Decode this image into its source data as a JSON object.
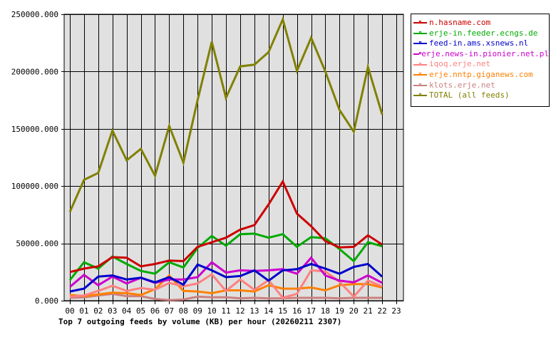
{
  "chart_data": {
    "type": "line",
    "title": "Top 7 outgoing feeds by volume (KB) per hour (20260211 2307)",
    "xlabel": "",
    "ylabel": "",
    "ylim": [
      0,
      250000
    ],
    "grid": true,
    "legend_position": "right",
    "x": [
      "00",
      "01",
      "02",
      "03",
      "04",
      "05",
      "06",
      "07",
      "08",
      "09",
      "10",
      "11",
      "12",
      "13",
      "14",
      "15",
      "16",
      "17",
      "18",
      "19",
      "20",
      "21",
      "22",
      "23"
    ],
    "y_ticks": [
      "0.000",
      "50000.000",
      "100000.000",
      "150000.000",
      "200000.000",
      "250000.000"
    ],
    "series": [
      {
        "name": "n.hasname.com",
        "color": "#cc0000",
        "values": [
          25000,
          28000,
          30000,
          38000,
          37500,
          30000,
          32000,
          35000,
          34500,
          47000,
          51000,
          55000,
          62000,
          66000,
          84000,
          104000,
          76000,
          65000,
          52000,
          46500,
          47000,
          57000,
          49000
        ]
      },
      {
        "name": "erje-in.feeder.ecngs.de",
        "color": "#00aa00",
        "values": [
          18000,
          33500,
          28000,
          38500,
          32000,
          26000,
          23500,
          33500,
          29000,
          46000,
          56500,
          48000,
          58000,
          58500,
          55000,
          58000,
          47000,
          55500,
          54500,
          45000,
          34500,
          51000,
          47500
        ]
      },
      {
        "name": "feed-in.ams.xsnews.nl",
        "color": "#0000cc",
        "values": [
          8000,
          10500,
          21000,
          22000,
          18500,
          20000,
          16000,
          20500,
          14000,
          31500,
          26500,
          20500,
          21500,
          26500,
          17500,
          26500,
          27500,
          32000,
          28000,
          23500,
          29500,
          32000,
          21000
        ]
      },
      {
        "name": "erje.news-in.pionier.net.pl",
        "color": "#cc00cc",
        "values": [
          12000,
          22500,
          13500,
          21000,
          15000,
          20000,
          15500,
          18500,
          18500,
          20500,
          33500,
          24500,
          26500,
          26000,
          26500,
          27500,
          23500,
          37500,
          22000,
          17500,
          16000,
          22000,
          15500
        ]
      },
      {
        "name": "iqoq.erje.net",
        "color": "#ff8080",
        "values": [
          3500,
          4500,
          8500,
          13000,
          8500,
          11000,
          9500,
          15500,
          12500,
          15000,
          23000,
          8500,
          18500,
          9500,
          18000,
          2500,
          6000,
          26500,
          25500,
          16500,
          3500,
          17500,
          12500
        ]
      },
      {
        "name": "erje.nntp.giganews.com",
        "color": "#ff8000",
        "values": [
          5000,
          4000,
          5500,
          7000,
          6500,
          5000,
          10000,
          22000,
          8500,
          8000,
          6500,
          9000,
          9000,
          8000,
          13500,
          10500,
          10500,
          11500,
          9000,
          13500,
          14500,
          14500,
          11500
        ]
      },
      {
        "name": "klots.erje.net",
        "color": "#cc8080",
        "values": [
          2500,
          3000,
          4500,
          6000,
          4000,
          4000,
          1500,
          500,
          1000,
          3500,
          3000,
          3000,
          2000,
          2500,
          2000,
          2000,
          2500,
          2500,
          2500,
          2000,
          2500,
          2500,
          2500
        ]
      },
      {
        "name": "TOTAL (all feeds)",
        "color": "#808000",
        "values": [
          77500,
          105500,
          111500,
          148500,
          122500,
          132500,
          109000,
          152500,
          120500,
          175000,
          226000,
          177000,
          204500,
          206000,
          217000,
          245500,
          200500,
          229500,
          200000,
          166500,
          147500,
          204000,
          162500
        ]
      }
    ]
  },
  "caption": "Top 7 outgoing feeds by volume (KB) per hour (20260211 2307)",
  "legend": {
    "items": [
      {
        "label": "n.hasname.com",
        "color": "#cc0000"
      },
      {
        "label": "erje-in.feeder.ecngs.de",
        "color": "#00aa00"
      },
      {
        "label": "feed-in.ams.xsnews.nl",
        "color": "#0000cc"
      },
      {
        "label": "erje.news-in.pionier.net.pl",
        "color": "#cc00cc"
      },
      {
        "label": "iqoq.erje.net",
        "color": "#ff8080"
      },
      {
        "label": "erje.nntp.giganews.com",
        "color": "#ff8000"
      },
      {
        "label": "klots.erje.net",
        "color": "#cc8080"
      },
      {
        "label": "TOTAL (all feeds)",
        "color": "#808000"
      }
    ]
  },
  "colors": {
    "plot_background": "#e0e0e0",
    "grid": "#000000"
  }
}
